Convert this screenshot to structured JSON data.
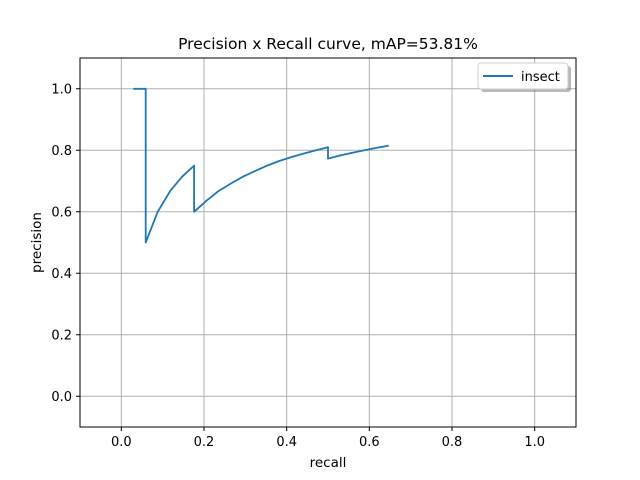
{
  "chart_data": {
    "type": "line",
    "title": "Precision x Recall curve, mAP=53.81%",
    "xlabel": "recall",
    "ylabel": "precision",
    "xlim": [
      -0.1,
      1.1
    ],
    "ylim": [
      -0.1,
      1.1
    ],
    "xticks": [
      0.0,
      0.2,
      0.4,
      0.6,
      0.8,
      1.0
    ],
    "xtick_labels": [
      "0.0",
      "0.2",
      "0.4",
      "0.6",
      "0.8",
      "1.0"
    ],
    "yticks": [
      0.0,
      0.2,
      0.4,
      0.6,
      0.8,
      1.0
    ],
    "ytick_labels": [
      "0.0",
      "0.2",
      "0.4",
      "0.6",
      "0.8",
      "1.0"
    ],
    "grid": true,
    "legend_position": "top-right",
    "series": [
      {
        "name": "insect",
        "color": "#1f77b4",
        "x": [
          0.029,
          0.059,
          0.059,
          0.088,
          0.118,
          0.147,
          0.176,
          0.176,
          0.206,
          0.235,
          0.265,
          0.294,
          0.324,
          0.353,
          0.382,
          0.412,
          0.441,
          0.471,
          0.5,
          0.5,
          0.529,
          0.559,
          0.588,
          0.618,
          0.647
        ],
        "y": [
          1.0,
          1.0,
          0.5,
          0.6,
          0.667,
          0.714,
          0.75,
          0.6,
          0.636,
          0.667,
          0.692,
          0.714,
          0.733,
          0.75,
          0.765,
          0.778,
          0.789,
          0.8,
          0.81,
          0.773,
          0.783,
          0.792,
          0.8,
          0.808,
          0.815
        ]
      }
    ]
  }
}
